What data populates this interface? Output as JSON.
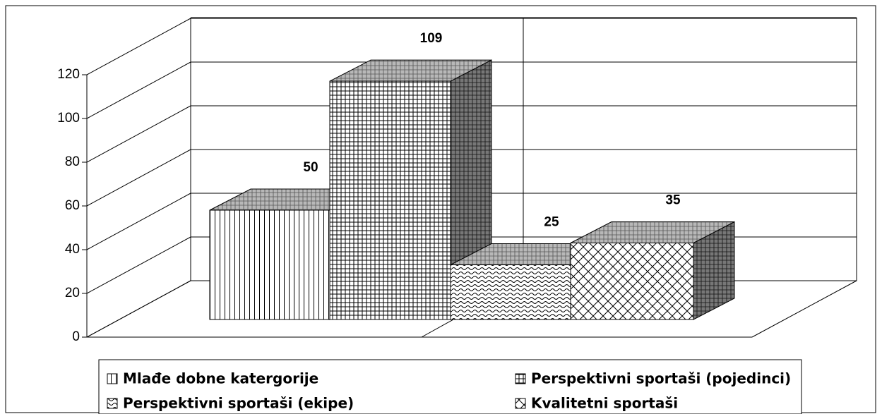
{
  "chart_data": {
    "type": "bar3d",
    "series": [
      {
        "name": "Mlađe dobne katergorije",
        "pattern": "vertical",
        "values": [
          50
        ]
      },
      {
        "name": "Perspektivni sportaši (pojedinci)",
        "pattern": "grid",
        "values": [
          109
        ]
      },
      {
        "name": "Perspektivni sportaši (ekipe)",
        "pattern": "wave",
        "values": [
          25
        ]
      },
      {
        "name": "Kvalitetni sportaši",
        "pattern": "diamond",
        "values": [
          35
        ]
      }
    ],
    "ylim": [
      0,
      120
    ],
    "yticks": [
      0,
      20,
      40,
      60,
      80,
      100,
      120
    ],
    "grid": true,
    "legend": "bottom"
  }
}
